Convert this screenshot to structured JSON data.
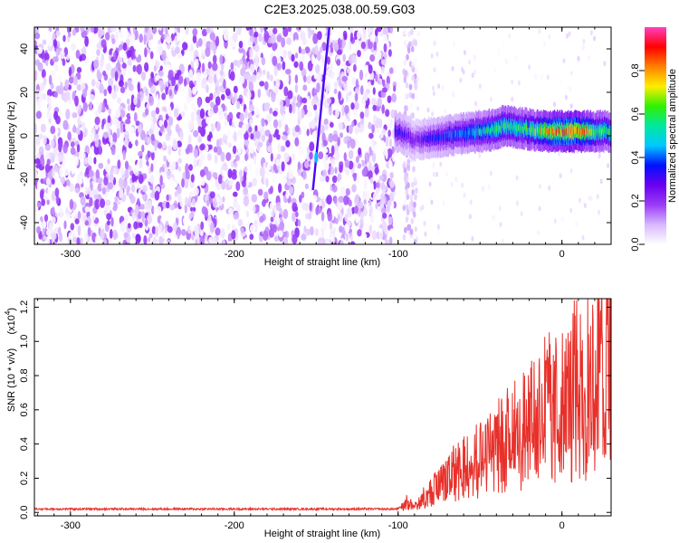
{
  "title": "C2E3.2025.038.00.59.G03",
  "chart_data": [
    {
      "type": "heatmap",
      "name": "spectrogram",
      "xlabel": "Height of straight line (km)",
      "ylabel": "Frequency (Hz)",
      "xlim": [
        -322,
        30
      ],
      "ylim": [
        -50,
        50
      ],
      "xticks": [
        -300,
        -200,
        -100,
        0
      ],
      "xtick_labels": [
        "-300",
        "-200",
        "-100",
        "0"
      ],
      "yticks": [
        -40,
        -20,
        0,
        20,
        40
      ],
      "ytick_labels": [
        "-40",
        "-20",
        "0",
        "20",
        "40"
      ],
      "colorbar": {
        "label": "Normalized spectral amplitude",
        "range": [
          0,
          1
        ],
        "ticks": [
          0.0,
          0.2,
          0.4,
          0.6,
          0.8
        ],
        "tick_labels": [
          "0.0",
          "0.2",
          "0.4",
          "0.6",
          "0.8"
        ],
        "colors": [
          "#ffffff",
          "#d8b8ff",
          "#9a3cf5",
          "#6a00f0",
          "#0010ff",
          "#00c8ff",
          "#00e8a0",
          "#30f000",
          "#ffee00",
          "#ff8000",
          "#ff0000",
          "#ff40c0"
        ]
      },
      "noise_region_x": [
        -322,
        -102
      ],
      "gap_region_x": [
        -102,
        -91
      ],
      "signal_band": {
        "x": [
          -102,
          -95,
          -90,
          -80,
          -70,
          -60,
          -50,
          -40,
          -35,
          -30,
          -20,
          -10,
          0,
          10,
          20,
          30
        ],
        "center_freq": [
          2,
          0,
          -2,
          -1,
          0,
          1,
          2,
          3,
          5,
          4,
          3,
          2,
          2,
          2,
          2,
          2
        ],
        "peak_amplitude": [
          0.35,
          0.3,
          0.25,
          0.35,
          0.4,
          0.45,
          0.55,
          0.6,
          0.65,
          0.6,
          0.65,
          0.8,
          0.95,
          0.9,
          0.7,
          0.6
        ]
      },
      "streak": {
        "x": [
          -152,
          -142
        ],
        "freq": [
          -25,
          50
        ]
      }
    },
    {
      "type": "line",
      "name": "snr",
      "xlabel": "Height of straight line (km)",
      "ylabel": "SNR (10 * v/v)",
      "scale_label": "(x10",
      "scale_exponent": "4",
      "xlim": [
        -322,
        30
      ],
      "ylim": [
        -0.02,
        1.25
      ],
      "xticks": [
        -300,
        -200,
        -100,
        0
      ],
      "xtick_labels": [
        "-300",
        "-200",
        "-100",
        "0"
      ],
      "yticks": [
        0.0,
        0.2,
        0.4,
        0.6,
        0.8,
        1.0,
        1.2
      ],
      "ytick_labels": [
        "0.0",
        "0.2",
        "0.4",
        "0.6",
        "0.8",
        "1.0",
        "1.2"
      ],
      "series": [
        {
          "color": "#e8302a",
          "x": [
            -322,
            -300,
            -250,
            -200,
            -150,
            -100,
            -95,
            -90,
            -85,
            -80,
            -75,
            -70,
            -65,
            -60,
            -55,
            -50,
            -45,
            -40,
            -35,
            -30,
            -25,
            -20,
            -15,
            -10,
            -5,
            0,
            5,
            10,
            15,
            20,
            25,
            30
          ],
          "y": [
            0.02,
            0.02,
            0.02,
            0.02,
            0.02,
            0.02,
            0.06,
            0.04,
            0.08,
            0.12,
            0.15,
            0.2,
            0.25,
            0.28,
            0.3,
            0.32,
            0.35,
            0.38,
            0.4,
            0.45,
            0.48,
            0.5,
            0.55,
            0.6,
            0.62,
            0.6,
            0.65,
            0.7,
            0.72,
            0.78,
            0.85,
            0.9
          ]
        }
      ]
    }
  ]
}
